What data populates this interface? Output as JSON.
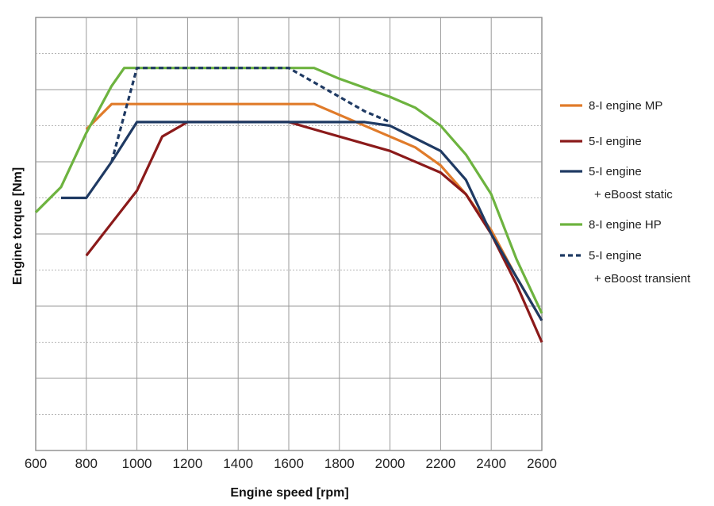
{
  "chart_data": {
    "type": "line",
    "title": "",
    "xlabel": "Engine speed [rpm]",
    "ylabel": "Engine torque [Nm]",
    "xlim": [
      600,
      2600
    ],
    "ylim": [
      0,
      12
    ],
    "x_ticks": [
      "600",
      "800",
      "1000",
      "1200",
      "1400",
      "1600",
      "1800",
      "2000",
      "2200",
      "2400",
      "2600"
    ],
    "grid": true,
    "legend_position": "right",
    "series": [
      {
        "name": "8-I engine MP",
        "color": "#e07b2a",
        "style": "solid",
        "points": [
          [
            800,
            8.9
          ],
          [
            900,
            9.6
          ],
          [
            1700,
            9.6
          ],
          [
            2000,
            8.7
          ],
          [
            2100,
            8.4
          ],
          [
            2200,
            7.9
          ],
          [
            2300,
            7.1
          ],
          [
            2400,
            6.1
          ],
          [
            2500,
            4.8
          ],
          [
            2600,
            3.6
          ]
        ]
      },
      {
        "name": "5-I engine",
        "color": "#8b1a1a",
        "style": "solid",
        "points": [
          [
            800,
            5.4
          ],
          [
            900,
            6.3
          ],
          [
            1000,
            7.2
          ],
          [
            1100,
            8.7
          ],
          [
            1200,
            9.1
          ],
          [
            1600,
            9.1
          ],
          [
            1700,
            8.9
          ],
          [
            2000,
            8.3
          ],
          [
            2200,
            7.7
          ],
          [
            2300,
            7.1
          ],
          [
            2400,
            6.0
          ],
          [
            2500,
            4.6
          ],
          [
            2600,
            3.0
          ]
        ]
      },
      {
        "name": "5-I engine\n+ eBoost static",
        "color": "#1f3a63",
        "style": "solid",
        "points": [
          [
            700,
            7.0
          ],
          [
            800,
            7.0
          ],
          [
            900,
            8.0
          ],
          [
            1000,
            9.1
          ],
          [
            1900,
            9.1
          ],
          [
            2000,
            9.0
          ],
          [
            2200,
            8.3
          ],
          [
            2300,
            7.5
          ],
          [
            2400,
            6.0
          ],
          [
            2500,
            4.8
          ],
          [
            2600,
            3.6
          ]
        ]
      },
      {
        "name": "8-I engine HP",
        "color": "#6db33f",
        "style": "solid",
        "points": [
          [
            600,
            6.6
          ],
          [
            700,
            7.3
          ],
          [
            800,
            8.8
          ],
          [
            900,
            10.1
          ],
          [
            950,
            10.6
          ],
          [
            1700,
            10.6
          ],
          [
            1800,
            10.3
          ],
          [
            2000,
            9.8
          ],
          [
            2100,
            9.5
          ],
          [
            2200,
            9.0
          ],
          [
            2300,
            8.2
          ],
          [
            2400,
            7.1
          ],
          [
            2500,
            5.3
          ],
          [
            2600,
            3.8
          ]
        ]
      },
      {
        "name": "5-I engine\n+ eBoost transient",
        "color": "#1f3a63",
        "style": "dashed",
        "points": [
          [
            900,
            8.0
          ],
          [
            1000,
            10.6
          ],
          [
            1600,
            10.6
          ],
          [
            1700,
            10.2
          ],
          [
            1900,
            9.4
          ],
          [
            2000,
            9.1
          ]
        ]
      }
    ]
  }
}
